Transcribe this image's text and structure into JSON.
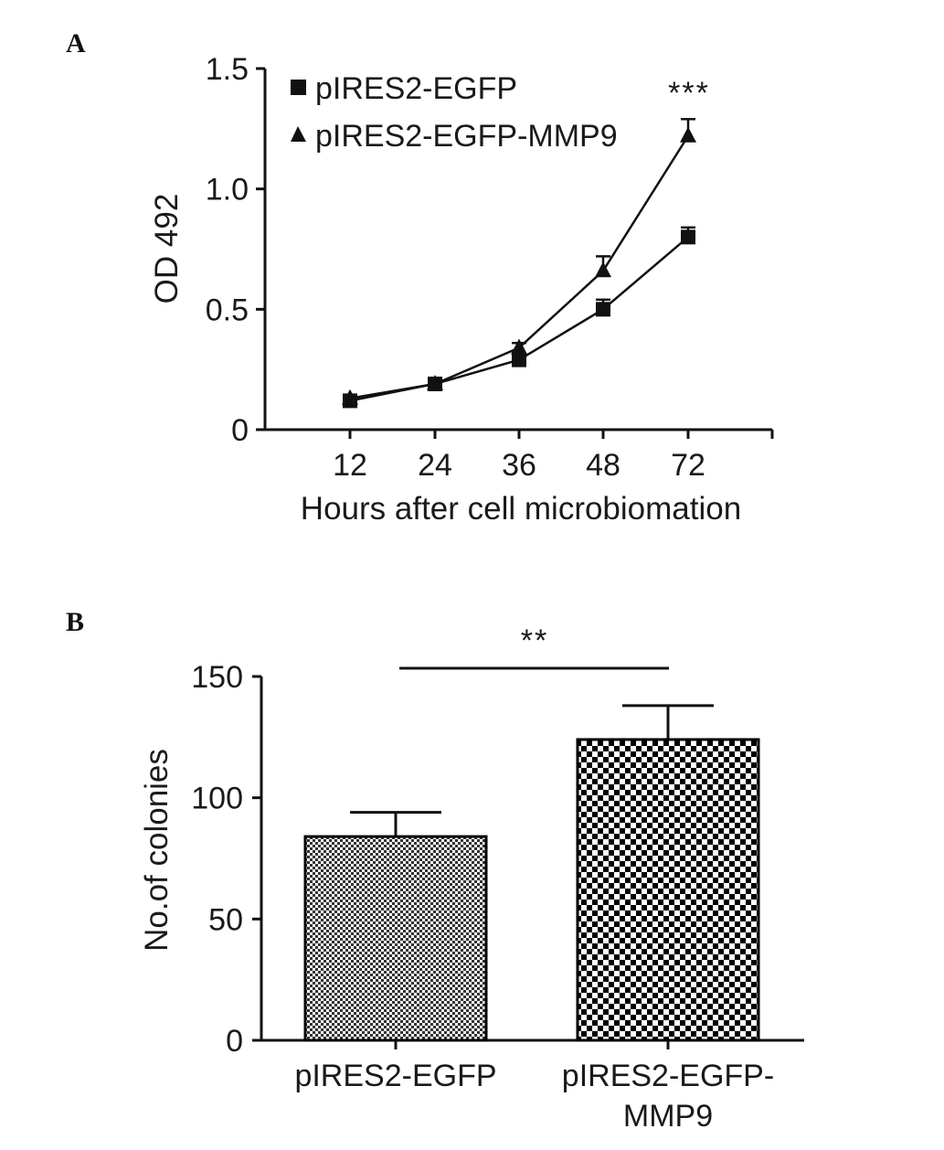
{
  "chart_data": [
    {
      "panel": "A",
      "type": "line",
      "xlabel": "Hours after cell microbiomation",
      "ylabel": "OD 492",
      "categories": [
        "12",
        "24",
        "36",
        "48",
        "72"
      ],
      "ylim": [
        0,
        1.5
      ],
      "yticks": [
        "0",
        "0.5",
        "1.0",
        "1.5"
      ],
      "legend_position": "top-left",
      "annotation": "***",
      "series": [
        {
          "name": "pIRES2-EGFP",
          "marker": "square",
          "values": [
            0.12,
            0.19,
            0.29,
            0.5,
            0.8
          ],
          "errors": [
            0.01,
            0.01,
            0.02,
            0.04,
            0.04
          ]
        },
        {
          "name": "pIRES2-EGFP-MMP9",
          "marker": "triangle",
          "values": [
            0.13,
            0.19,
            0.34,
            0.66,
            1.22
          ],
          "errors": [
            0.01,
            0.01,
            0.02,
            0.06,
            0.07
          ]
        }
      ]
    },
    {
      "panel": "B",
      "type": "bar",
      "ylabel": "No.of colonies",
      "categories": [
        "pIRES2-EGFP",
        "pIRES2-EGFP-\nMMP9"
      ],
      "ylim": [
        0,
        150
      ],
      "yticks": [
        "0",
        "50",
        "100",
        "150"
      ],
      "values": [
        84,
        124
      ],
      "errors": [
        10,
        14
      ],
      "annotation": "**",
      "fill_patterns": [
        "fine-check",
        "coarse-check"
      ]
    }
  ]
}
